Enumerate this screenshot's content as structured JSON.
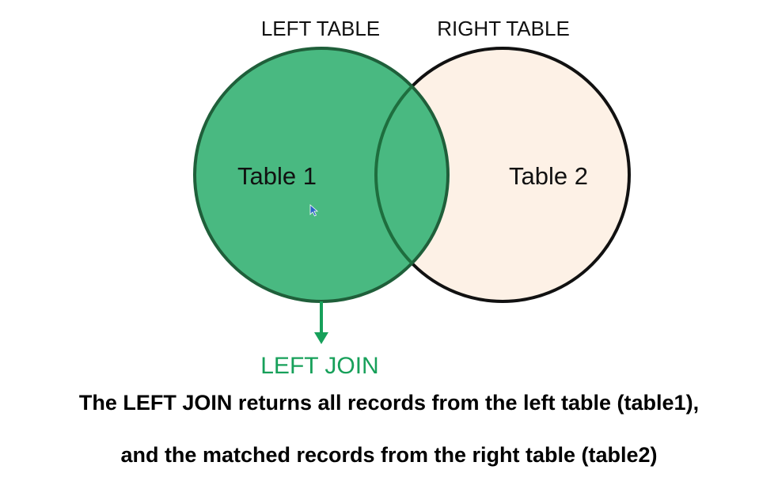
{
  "labels": {
    "left_table_header": "LEFT TABLE",
    "right_table_header": "RIGHT TABLE",
    "table1": "Table 1",
    "table2": "Table 2",
    "join_label": "LEFT JOIN"
  },
  "caption": {
    "line1": "The LEFT JOIN returns all records from the left table (table1),",
    "line2": "and the matched records from the right table (table2)"
  },
  "colors": {
    "left_fill": "#43b77d",
    "right_fill": "#fdf1e6",
    "outline": "#111111",
    "overlap_outline": "#1e6e3e",
    "join_accent": "#17a05a"
  },
  "icons": {
    "cursor": "mouse-pointer-icon",
    "arrow": "arrow-down-icon"
  }
}
